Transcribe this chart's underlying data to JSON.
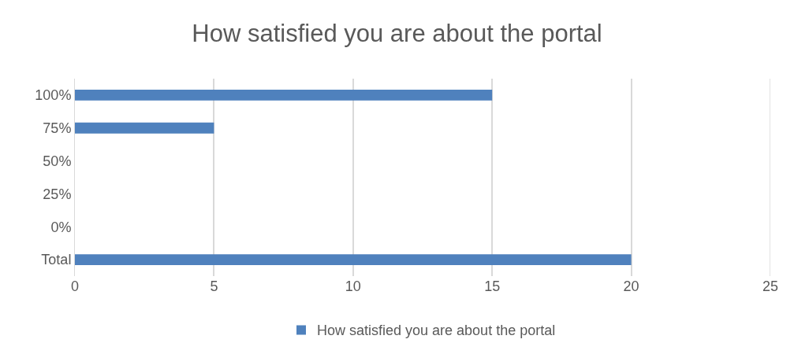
{
  "chart_data": {
    "type": "bar",
    "orientation": "horizontal",
    "title": "How satisfied you are about the portal",
    "categories": [
      "100%",
      "75%",
      "50%",
      "25%",
      "0%",
      "Total"
    ],
    "series": [
      {
        "name": "How satisfied you are about the portal",
        "color": "#4f81bd",
        "values": [
          15,
          5,
          0,
          0,
          0,
          20
        ]
      }
    ],
    "xlim": [
      0,
      25
    ],
    "xticks": [
      0,
      5,
      10,
      15,
      20,
      25
    ],
    "grid": "x",
    "legend": "bottom"
  }
}
